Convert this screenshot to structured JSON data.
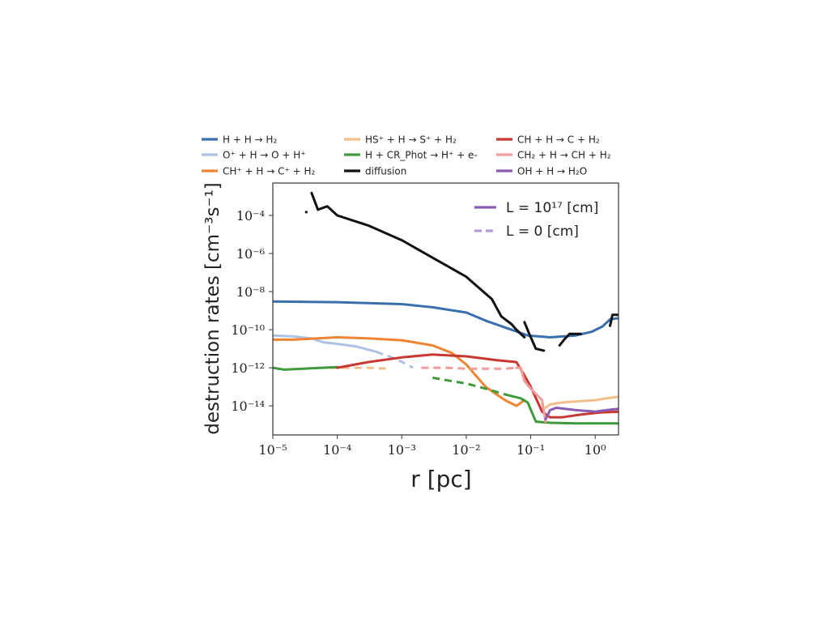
{
  "chart_data": {
    "type": "line",
    "xlabel": "r [pc]",
    "ylabel": "destruction rates [cm⁻³s⁻¹]",
    "xscale": "log",
    "yscale": "log",
    "xlim": [
      1e-05,
      2.3
    ],
    "ylim": [
      3e-16,
      0.005
    ],
    "x_ticks": [
      {
        "value": 1e-05,
        "label": "10⁻⁵"
      },
      {
        "value": 0.0001,
        "label": "10⁻⁴"
      },
      {
        "value": 0.001,
        "label": "10⁻³"
      },
      {
        "value": 0.01,
        "label": "10⁻²"
      },
      {
        "value": 0.1,
        "label": "10⁻¹"
      },
      {
        "value": 1,
        "label": "10⁰"
      }
    ],
    "y_ticks": [
      {
        "value": 1e-14,
        "label": "10⁻¹⁴"
      },
      {
        "value": 1e-12,
        "label": "10⁻¹²"
      },
      {
        "value": 1e-10,
        "label": "10⁻¹⁰"
      },
      {
        "value": 1e-08,
        "label": "10⁻⁸"
      },
      {
        "value": 1e-06,
        "label": "10⁻⁶"
      },
      {
        "value": 0.0001,
        "label": "10⁻⁴"
      }
    ],
    "grid": false,
    "legend_placement": "above the axes, three columns",
    "series": [
      {
        "name": "H + H → H₂",
        "color": "#3a6fae",
        "segments": [
          {
            "style": "solid",
            "points": [
              [
                1e-05,
                3e-09
              ],
              [
                0.0001,
                2.8e-09
              ],
              [
                0.001,
                2.2e-09
              ],
              [
                0.003,
                1.5e-09
              ],
              [
                0.01,
                8e-10
              ],
              [
                0.02,
                3e-10
              ],
              [
                0.05,
                1e-10
              ],
              [
                0.09,
                5e-11
              ],
              [
                0.2,
                4e-11
              ],
              [
                0.5,
                5e-11
              ],
              [
                0.9,
                8e-11
              ],
              [
                1.3,
                1.5e-10
              ],
              [
                1.7,
                3.5e-10
              ],
              [
                2.3,
                4e-10
              ]
            ]
          }
        ]
      },
      {
        "name": "O⁺ + H → O + H⁺",
        "color": "#adc2e2",
        "segments": [
          {
            "style": "solid",
            "points": [
              [
                1e-05,
                5e-11
              ],
              [
                2e-05,
                4.5e-11
              ],
              [
                4e-05,
                3.5e-11
              ],
              [
                6e-05,
                2.2e-11
              ],
              [
                0.0001,
                1.8e-11
              ],
              [
                0.0002,
                1.3e-11
              ],
              [
                0.0004,
                7e-12
              ]
            ]
          },
          {
            "style": "dashed",
            "points": [
              [
                0.0004,
                7e-12
              ],
              [
                0.0008,
                3e-12
              ],
              [
                0.0015,
                1e-12
              ]
            ]
          }
        ]
      },
      {
        "name": "CH⁺ + H → C⁺ + H₂",
        "color": "#ee8432",
        "segments": [
          {
            "style": "solid",
            "points": [
              [
                1e-05,
                3e-11
              ],
              [
                2e-05,
                3e-11
              ],
              [
                5e-05,
                3.5e-11
              ],
              [
                0.0001,
                4e-11
              ],
              [
                0.0003,
                3.5e-11
              ],
              [
                0.001,
                2.8e-11
              ],
              [
                0.003,
                1.5e-11
              ],
              [
                0.006,
                6e-12
              ],
              [
                0.01,
                1.5e-12
              ],
              [
                0.02,
                1e-13
              ],
              [
                0.04,
                2e-14
              ],
              [
                0.06,
                1e-14
              ],
              [
                0.08,
                2e-14
              ]
            ]
          }
        ]
      },
      {
        "name": "HS⁺ + H → S⁺ + H₂",
        "color": "#f2be8a",
        "segments": [
          {
            "style": "solid",
            "points": [
              [
                0.17,
                8e-15
              ],
              [
                0.2,
                1.2e-14
              ],
              [
                0.3,
                1.5e-14
              ],
              [
                0.6,
                1.8e-14
              ],
              [
                1,
                2e-14
              ],
              [
                1.5,
                2.5e-14
              ],
              [
                2.3,
                3e-14
              ]
            ]
          },
          {
            "style": "dashed",
            "points": [
              [
                5e-05,
                1e-12
              ],
              [
                0.0001,
                1e-12
              ],
              [
                0.0003,
                1e-12
              ],
              [
                0.0006,
                9e-13
              ]
            ]
          }
        ]
      },
      {
        "name": "H + CR_Phot → H⁺ + e-",
        "color": "#3e9a3b",
        "segments": [
          {
            "style": "solid",
            "points": [
              [
                1e-05,
                1e-12
              ],
              [
                1.5e-05,
                8e-13
              ],
              [
                3e-05,
                9e-13
              ],
              [
                6e-05,
                1e-12
              ],
              [
                0.0001,
                1.1e-12
              ]
            ]
          },
          {
            "style": "dashed",
            "points": [
              [
                0.003,
                3e-13
              ],
              [
                0.006,
                2e-13
              ],
              [
                0.01,
                1.5e-13
              ],
              [
                0.02,
                8e-14
              ],
              [
                0.04,
                4e-14
              ]
            ]
          },
          {
            "style": "solid",
            "points": [
              [
                0.04,
                4e-14
              ],
              [
                0.07,
                2.5e-14
              ],
              [
                0.09,
                1.5e-14
              ],
              [
                0.12,
                1.5e-15
              ],
              [
                0.2,
                1.3e-15
              ],
              [
                0.5,
                1.2e-15
              ],
              [
                1,
                1.2e-15
              ],
              [
                2.3,
                1.2e-15
              ]
            ]
          }
        ]
      },
      {
        "name": "diffusion",
        "color": "#111111",
        "segments": [
          {
            "style": "solid",
            "points": [
              [
                4e-05,
                0.0015
              ],
              [
                5e-05,
                0.0002
              ],
              [
                7e-05,
                0.0003
              ],
              [
                0.0001,
                0.0001
              ],
              [
                0.0003,
                3e-05
              ],
              [
                0.001,
                5e-06
              ],
              [
                0.003,
                6e-07
              ],
              [
                0.01,
                6e-08
              ],
              [
                0.025,
                4e-09
              ],
              [
                0.035,
                5e-10
              ],
              [
                0.05,
                2e-10
              ],
              [
                0.06,
                1e-10
              ],
              [
                0.08,
                4e-11
              ]
            ]
          },
          {
            "style": "solid",
            "points": [
              [
                0.08,
                2.5e-10
              ],
              [
                0.095,
                6e-11
              ],
              [
                0.12,
                1e-11
              ],
              [
                0.16,
                8e-12
              ]
            ]
          },
          {
            "style": "solid",
            "points": [
              [
                0.28,
                1.5e-11
              ],
              [
                0.33,
                3e-11
              ],
              [
                0.4,
                6e-11
              ],
              [
                0.6,
                6e-11
              ]
            ]
          },
          {
            "style": "solid",
            "points": [
              [
                1.7,
                1.6e-10
              ],
              [
                1.85,
                6e-10
              ],
              [
                2.3,
                6e-10
              ]
            ]
          }
        ]
      },
      {
        "name": "CH + H → C + H₂",
        "color": "#c83830",
        "segments": [
          {
            "style": "solid",
            "points": [
              [
                0.0001,
                1e-12
              ],
              [
                0.0003,
                2e-12
              ],
              [
                0.001,
                3.5e-12
              ],
              [
                0.003,
                5e-12
              ],
              [
                0.01,
                4e-12
              ],
              [
                0.03,
                2.5e-12
              ],
              [
                0.06,
                2e-12
              ],
              [
                0.08,
                4e-13
              ],
              [
                0.1,
                1e-13
              ],
              [
                0.15,
                5e-15
              ],
              [
                0.2,
                2.5e-15
              ],
              [
                0.3,
                2.5e-15
              ],
              [
                0.6,
                3.5e-15
              ],
              [
                1.2,
                4.5e-15
              ],
              [
                2.3,
                5e-15
              ]
            ]
          }
        ]
      },
      {
        "name": "CH₂ + H → CH + H₂",
        "color": "#ef9c9a",
        "segments": [
          {
            "style": "dashed",
            "points": [
              [
                0.002,
                1e-12
              ],
              [
                0.005,
                1e-12
              ],
              [
                0.01,
                9e-13
              ],
              [
                0.02,
                9e-13
              ],
              [
                0.04,
                9e-13
              ],
              [
                0.06,
                1e-12
              ]
            ]
          },
          {
            "style": "solid",
            "points": [
              [
                0.06,
                1e-12
              ],
              [
                0.07,
                1e-12
              ],
              [
                0.08,
                2e-13
              ],
              [
                0.1,
                8e-14
              ],
              [
                0.15,
                2e-14
              ],
              [
                0.17,
                1.5e-15
              ]
            ]
          }
        ]
      },
      {
        "name": "OH + H → H₂O",
        "color": "#8a5bb3",
        "segments": [
          {
            "style": "solid",
            "points": [
              [
                0.17,
                2e-15
              ],
              [
                0.2,
                6e-15
              ],
              [
                0.25,
                8e-15
              ],
              [
                0.5,
                6e-15
              ],
              [
                1,
                5e-15
              ],
              [
                1.5,
                6e-15
              ],
              [
                2.3,
                7e-15
              ]
            ]
          }
        ]
      }
    ],
    "inner_legend": [
      {
        "label": "L = 10¹⁷ [cm]",
        "color": "#8a5bb3",
        "style": "solid"
      },
      {
        "label": "L = 0 [cm]",
        "color": "#b59ad4",
        "style": "dashed"
      }
    ],
    "annotations": [
      {
        "type": "point",
        "x": 3.3e-05,
        "y": 0.00015,
        "color": "#111111"
      }
    ]
  }
}
